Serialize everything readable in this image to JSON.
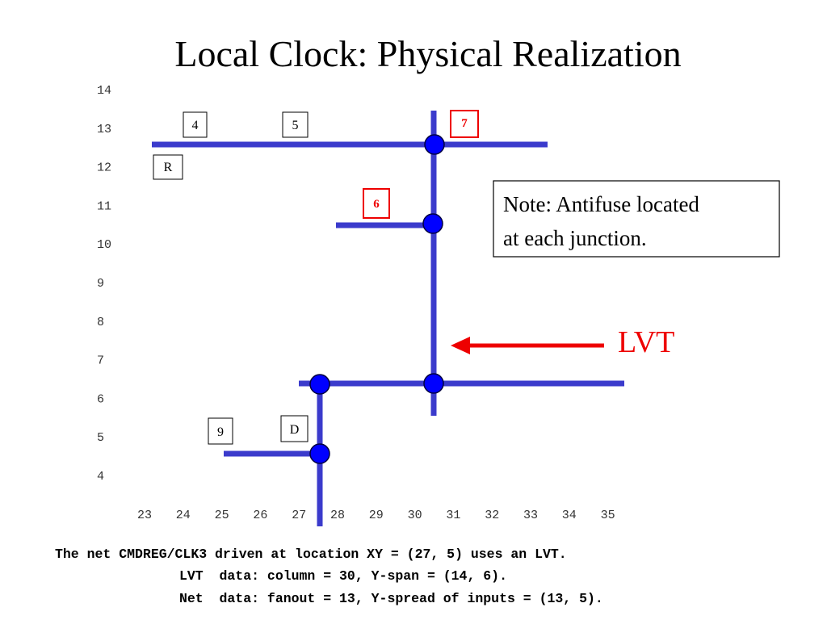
{
  "title": "Local Clock: Physical Realization",
  "y_axis_labels": [
    14,
    13,
    12,
    11,
    10,
    9,
    8,
    7,
    6,
    5,
    4
  ],
  "x_axis_labels": [
    23,
    24,
    25,
    26,
    27,
    28,
    29,
    30,
    31,
    32,
    33,
    34,
    35
  ],
  "boxes": [
    {
      "label": "4"
    },
    {
      "label": "5"
    },
    {
      "label": "7"
    },
    {
      "label": "R"
    },
    {
      "label": "6"
    },
    {
      "label": "9"
    },
    {
      "label": "D"
    }
  ],
  "note": [
    "Note: Antifuse located",
    "at each junction."
  ],
  "arrow_label": "LVT",
  "caption": [
    "The net CMDREG/CLK3 driven at location XY = (27, 5) uses an LVT.",
    "LVT  data: column = 30, Y-span = (14, 6).",
    "Net  data: fanout = 13, Y-spread of inputs = (13, 5)."
  ]
}
